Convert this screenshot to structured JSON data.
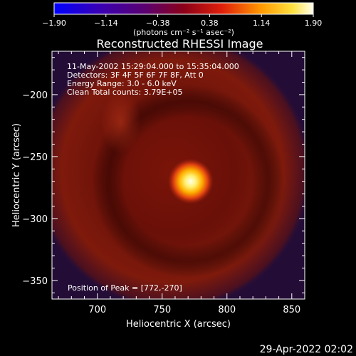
{
  "chart_data": {
    "type": "heatmap",
    "title": "Reconstructed RHESSI Image",
    "xlabel": "Heliocentric X (arcsec)",
    "ylabel": "Heliocentric Y (arcsec)",
    "xlim": [
      665,
      860
    ],
    "ylim": [
      -365,
      -165
    ],
    "xticks": [
      700,
      750,
      800,
      850
    ],
    "yticks": [
      -200,
      -250,
      -300,
      -350
    ],
    "colorbar": {
      "ticks": [
        "-1.90",
        "-1.14",
        "-0.38",
        "0.38",
        "1.14",
        "1.90"
      ],
      "range": [
        -1.9,
        1.9
      ],
      "colormap": "blue-purple-red-yellow-white",
      "unit_label": "(photons cm⁻² s⁻¹ asec⁻²)"
    },
    "annotations": [
      "11-May-2002 15:29:04.000 to 15:35:04.000",
      "Detectors: 3F 4F 5F 6F 7F 8F, Att 0",
      "Energy Range: 3.0 - 6.0 keV",
      "Clean      Total counts: 3.79E+05"
    ],
    "peak_label": "Position of Peak = [772,-270]",
    "peak": {
      "x": 772,
      "y": -270
    }
  },
  "footer": {
    "timestamp": "29-Apr-2022 02:02"
  },
  "colors": {
    "background": "#000000",
    "frame": "#ffffff",
    "dark_purple": "#2a0f3a",
    "disk_red": "#8a1a0a",
    "peak_white": "#fffff0"
  }
}
